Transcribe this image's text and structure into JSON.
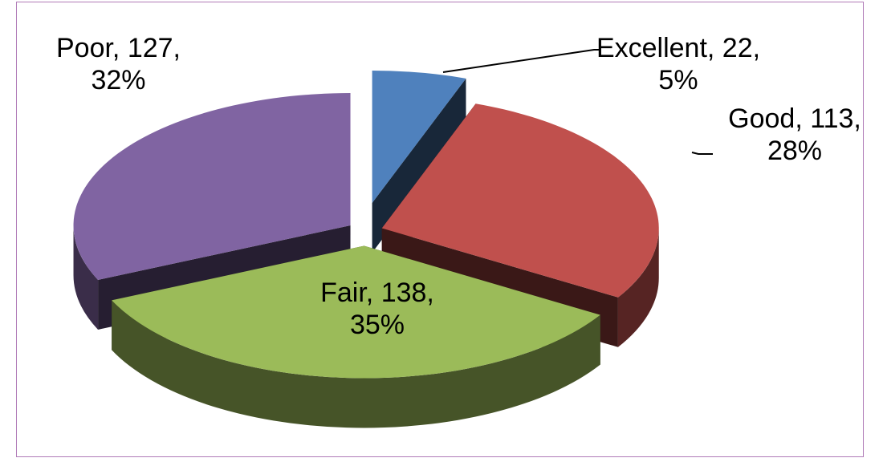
{
  "chart_data": {
    "type": "pie",
    "categories": [
      "Excellent",
      "Good",
      "Fair",
      "Poor"
    ],
    "values": [
      22,
      113,
      138,
      127
    ],
    "value_labels": [
      "Excellent, 22, 5%",
      "Good, 113, 28%",
      "Fair, 138, 35%",
      "Poor, 127, 32%"
    ],
    "colors": [
      "#4f81bd",
      "#c0504d",
      "#9bbb59",
      "#8064a2"
    ]
  }
}
